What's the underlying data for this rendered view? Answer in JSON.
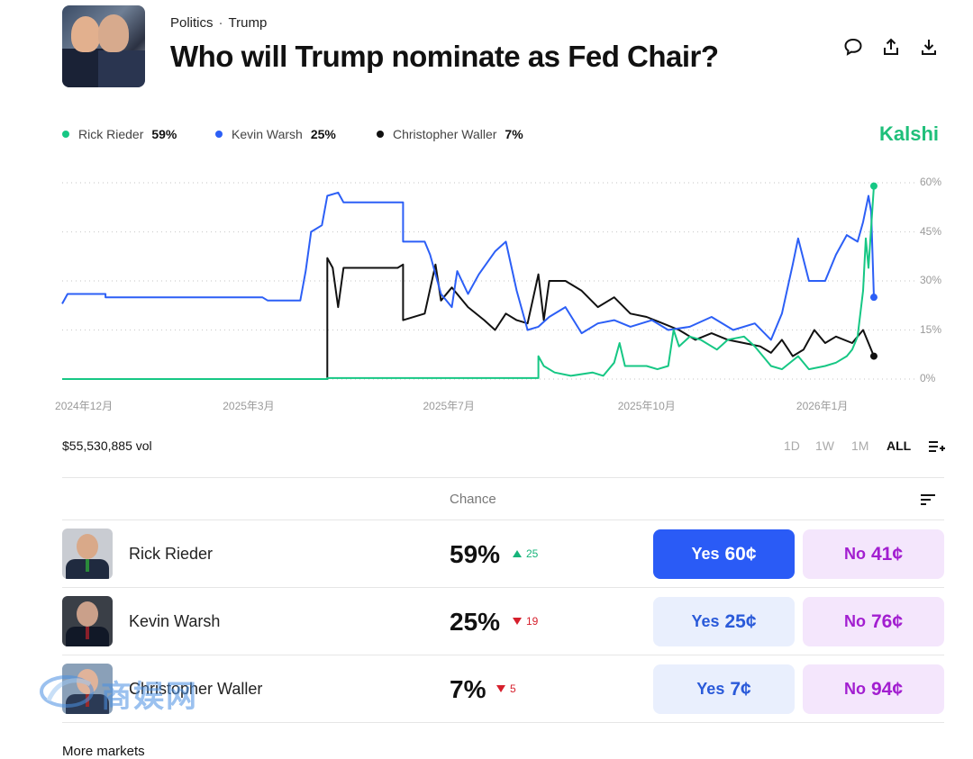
{
  "header": {
    "breadcrumb": [
      "Politics",
      "Trump"
    ],
    "title": "Who will Trump nominate as Fed Chair?",
    "actions": [
      {
        "name": "comment",
        "icon": "chat-bubble-icon"
      },
      {
        "name": "share",
        "icon": "share-icon"
      },
      {
        "name": "download",
        "icon": "download-icon"
      }
    ]
  },
  "legend": [
    {
      "name": "Rick Rieder",
      "pct": "59%",
      "color": "#16c784"
    },
    {
      "name": "Kevin Warsh",
      "pct": "25%",
      "color": "#2c5ff6"
    },
    {
      "name": "Christopher Waller",
      "pct": "7%",
      "color": "#111111"
    }
  ],
  "brand": "Kalshi",
  "chart_data": {
    "type": "line",
    "title": "Who will Trump nominate as Fed Chair?",
    "y_ticks": [
      "60%",
      "45%",
      "30%",
      "15%",
      "0%"
    ],
    "ylim": [
      0,
      60
    ],
    "x_ticks": [
      "2024年12月",
      "2025年3月",
      "2025年7月",
      "2025年10月",
      "2026年1月"
    ],
    "x_tick_pos": [
      0.5,
      3.6,
      7.3,
      10.9,
      14.2
    ],
    "xlim": [
      0,
      15.5
    ],
    "grid": true,
    "series": [
      {
        "name": "Rick Rieder",
        "color": "#16c784",
        "final": 59,
        "points": [
          [
            0,
            0
          ],
          [
            4.9,
            0
          ],
          [
            4.9,
            0.3
          ],
          [
            8.8,
            0.3
          ],
          [
            8.8,
            7
          ],
          [
            8.9,
            4
          ],
          [
            9.1,
            2
          ],
          [
            9.4,
            1
          ],
          [
            9.8,
            2
          ],
          [
            10,
            1
          ],
          [
            10.2,
            5
          ],
          [
            10.3,
            11
          ],
          [
            10.4,
            4
          ],
          [
            10.8,
            4
          ],
          [
            11,
            3
          ],
          [
            11.2,
            4
          ],
          [
            11.3,
            15
          ],
          [
            11.4,
            10
          ],
          [
            11.6,
            13
          ],
          [
            11.8,
            12
          ],
          [
            12.1,
            9
          ],
          [
            12.3,
            12
          ],
          [
            12.6,
            13
          ],
          [
            12.8,
            10
          ],
          [
            13.1,
            4
          ],
          [
            13.3,
            3
          ],
          [
            13.6,
            7
          ],
          [
            13.8,
            3
          ],
          [
            14.1,
            4
          ],
          [
            14.3,
            5
          ],
          [
            14.5,
            7
          ],
          [
            14.6,
            9
          ],
          [
            14.7,
            13
          ],
          [
            14.8,
            27
          ],
          [
            14.85,
            43
          ],
          [
            14.9,
            34
          ],
          [
            15,
            59
          ]
        ]
      },
      {
        "name": "Kevin Warsh",
        "color": "#2c5ff6",
        "final": 25,
        "points": [
          [
            0,
            23
          ],
          [
            0.1,
            26
          ],
          [
            0.8,
            26
          ],
          [
            0.8,
            25
          ],
          [
            3.7,
            25
          ],
          [
            3.8,
            24
          ],
          [
            4.4,
            24
          ],
          [
            4.5,
            33
          ],
          [
            4.6,
            45
          ],
          [
            4.8,
            47
          ],
          [
            4.9,
            56
          ],
          [
            5.1,
            57
          ],
          [
            5.2,
            54
          ],
          [
            6.3,
            54
          ],
          [
            6.3,
            42
          ],
          [
            6.7,
            42
          ],
          [
            6.8,
            38
          ],
          [
            7,
            26
          ],
          [
            7.2,
            22
          ],
          [
            7.3,
            33
          ],
          [
            7.5,
            26
          ],
          [
            7.7,
            32
          ],
          [
            8,
            39
          ],
          [
            8.2,
            42
          ],
          [
            8.4,
            27
          ],
          [
            8.6,
            15
          ],
          [
            8.8,
            16
          ],
          [
            9,
            19
          ],
          [
            9.3,
            22
          ],
          [
            9.6,
            14
          ],
          [
            9.9,
            17
          ],
          [
            10.2,
            18
          ],
          [
            10.5,
            16
          ],
          [
            10.9,
            18
          ],
          [
            11.2,
            15
          ],
          [
            11.6,
            16
          ],
          [
            12,
            19
          ],
          [
            12.4,
            15
          ],
          [
            12.8,
            17
          ],
          [
            13.1,
            12
          ],
          [
            13.3,
            20
          ],
          [
            13.5,
            35
          ],
          [
            13.6,
            43
          ],
          [
            13.8,
            30
          ],
          [
            14.1,
            30
          ],
          [
            14.3,
            38
          ],
          [
            14.5,
            44
          ],
          [
            14.7,
            42
          ],
          [
            14.8,
            48
          ],
          [
            14.9,
            56
          ],
          [
            14.95,
            51
          ],
          [
            15,
            25
          ]
        ]
      },
      {
        "name": "Christopher Waller",
        "color": "#111111",
        "final": 7,
        "points": [
          [
            0,
            0
          ],
          [
            4.9,
            0
          ],
          [
            4.9,
            37
          ],
          [
            5,
            34
          ],
          [
            5.1,
            22
          ],
          [
            5.2,
            34
          ],
          [
            6.2,
            34
          ],
          [
            6.3,
            35
          ],
          [
            6.3,
            18
          ],
          [
            6.7,
            20
          ],
          [
            6.9,
            35
          ],
          [
            7,
            24
          ],
          [
            7.2,
            28
          ],
          [
            7.5,
            22
          ],
          [
            7.8,
            18
          ],
          [
            8,
            15
          ],
          [
            8.2,
            20
          ],
          [
            8.4,
            18
          ],
          [
            8.6,
            17
          ],
          [
            8.8,
            32
          ],
          [
            8.9,
            18
          ],
          [
            9,
            30
          ],
          [
            9.3,
            30
          ],
          [
            9.6,
            27
          ],
          [
            9.9,
            22
          ],
          [
            10.2,
            25
          ],
          [
            10.5,
            20
          ],
          [
            10.8,
            19
          ],
          [
            11.1,
            17
          ],
          [
            11.4,
            15
          ],
          [
            11.7,
            12
          ],
          [
            12,
            14
          ],
          [
            12.3,
            12
          ],
          [
            12.6,
            11
          ],
          [
            12.9,
            10
          ],
          [
            13.1,
            8
          ],
          [
            13.3,
            12
          ],
          [
            13.5,
            7
          ],
          [
            13.7,
            9
          ],
          [
            13.9,
            15
          ],
          [
            14.1,
            11
          ],
          [
            14.3,
            13
          ],
          [
            14.6,
            11
          ],
          [
            14.8,
            15
          ],
          [
            15,
            7
          ]
        ]
      }
    ]
  },
  "volume": "$55,530,885 vol",
  "ranges": [
    {
      "label": "1D",
      "active": false
    },
    {
      "label": "1W",
      "active": false
    },
    {
      "label": "1M",
      "active": false
    },
    {
      "label": "ALL",
      "active": true
    }
  ],
  "table": {
    "chance_header": "Chance",
    "rows": [
      {
        "name": "Rick Rieder",
        "pct": "59%",
        "dir": "up",
        "delta": "25",
        "yes_label": "Yes",
        "yes_price": "60¢",
        "no_label": "No",
        "no_price": "41¢",
        "primary": true
      },
      {
        "name": "Kevin Warsh",
        "pct": "25%",
        "dir": "down",
        "delta": "19",
        "yes_label": "Yes",
        "yes_price": "25¢",
        "no_label": "No",
        "no_price": "76¢",
        "primary": false
      },
      {
        "name": "Christopher Waller",
        "pct": "7%",
        "dir": "down",
        "delta": "5",
        "yes_label": "Yes",
        "yes_price": "7¢",
        "no_label": "No",
        "no_price": "94¢",
        "primary": false
      }
    ]
  },
  "footer": {
    "more_markets": "More markets"
  },
  "watermark": "商娱网"
}
